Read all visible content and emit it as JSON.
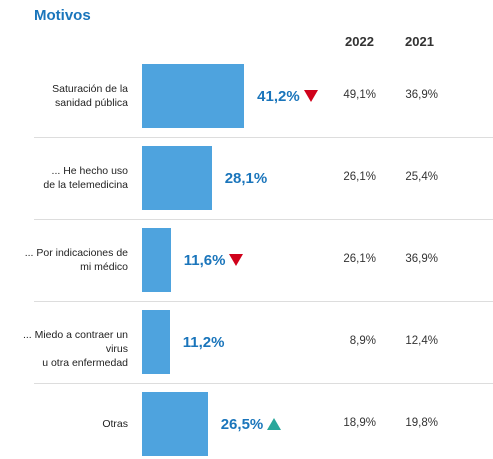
{
  "title": "Motivos",
  "columns": {
    "c2022": "2022",
    "c2021": "2021"
  },
  "colors": {
    "bar": "#4ea3de",
    "value_text": "#1a75bb",
    "down": "#d0021b",
    "up": "#2aa79b"
  },
  "chart_data": {
    "type": "bar",
    "orientation": "horizontal",
    "categories": [
      [
        "Saturación de la",
        "sanidad pública"
      ],
      [
        "... He hecho uso",
        "de la telemedicina"
      ],
      [
        "... Por indicaciones de",
        "mi médico"
      ],
      [
        "... Miedo a contraer un virus",
        "u otra enfermedad"
      ],
      [
        "Otras"
      ]
    ],
    "values": [
      41.2,
      28.1,
      11.6,
      11.2,
      26.5
    ],
    "value_labels": [
      "41,2%",
      "28,1%",
      "11,6%",
      "11,2%",
      "26,5%"
    ],
    "trend": [
      "down",
      null,
      "down",
      null,
      "up"
    ],
    "y2022": [
      "49,1%",
      "26,1%",
      "26,1%",
      "8,9%",
      "18,9%"
    ],
    "y2021": [
      "36,9%",
      "25,4%",
      "36,9%",
      "12,4%",
      "19,8%"
    ]
  }
}
